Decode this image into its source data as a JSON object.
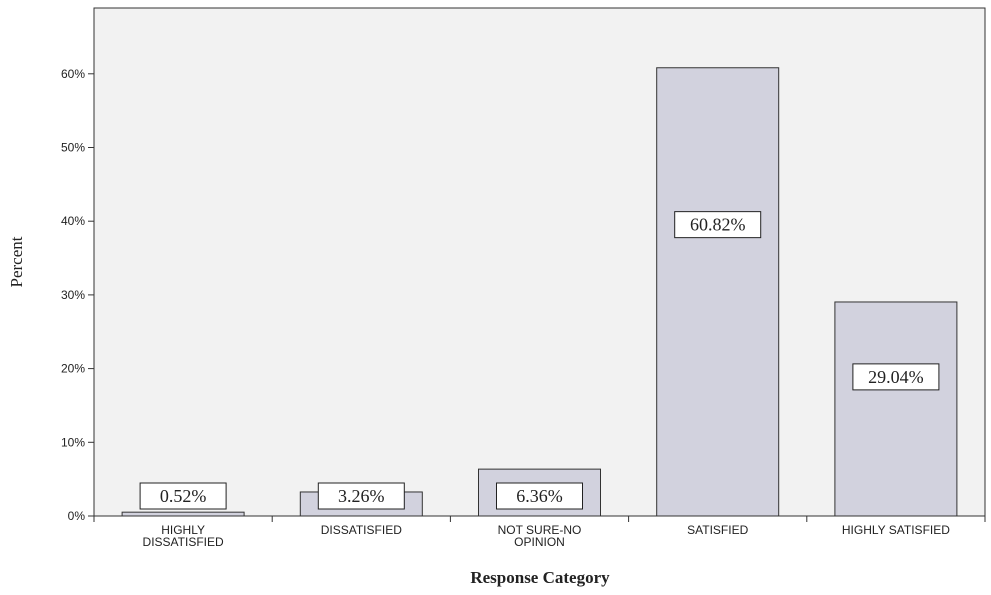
{
  "chart_data": {
    "type": "bar",
    "categories": [
      [
        "HIGHLY",
        "DISSATISFIED"
      ],
      [
        "DISSATISFIED"
      ],
      [
        "NOT SURE-NO",
        "OPINION"
      ],
      [
        "SATISFIED"
      ],
      [
        "HIGHLY SATISFIED"
      ]
    ],
    "values": [
      0.52,
      3.26,
      6.36,
      60.82,
      29.04
    ],
    "data_labels": [
      "0.52%",
      "3.26%",
      "6.36%",
      "60.82%",
      "29.04%"
    ],
    "xlabel": "Response Category",
    "ylabel": "Percent",
    "ylim": [
      0,
      67
    ],
    "yticks": [
      0,
      10,
      20,
      30,
      40,
      50,
      60
    ],
    "ytick_labels": [
      "0%",
      "10%",
      "20%",
      "30%",
      "40%",
      "50%",
      "60%"
    ],
    "grid": false,
    "colors": {
      "bar_fill": "#d2d2de",
      "bar_stroke": "#333333",
      "plot_background": "#f2f2f2",
      "axis": "#333333"
    }
  }
}
